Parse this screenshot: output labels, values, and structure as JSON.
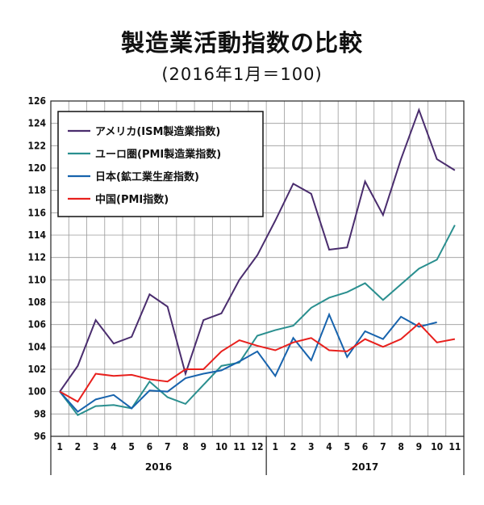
{
  "chart_data": {
    "type": "line",
    "title": "製造業活動指数の比較",
    "subtitle": "(2016年1月＝100)",
    "xlabel": "",
    "ylabel": "",
    "ylim": [
      96,
      126
    ],
    "yticks": [
      96,
      98,
      100,
      102,
      104,
      106,
      108,
      110,
      112,
      114,
      116,
      118,
      120,
      122,
      124,
      126
    ],
    "categories": [
      "1",
      "2",
      "3",
      "4",
      "5",
      "6",
      "7",
      "8",
      "9",
      "10",
      "11",
      "12",
      "1",
      "2",
      "3",
      "4",
      "5",
      "6",
      "7",
      "8",
      "9",
      "10",
      "11"
    ],
    "years": [
      {
        "label": "2016",
        "start": 0,
        "end": 11
      },
      {
        "label": "2017",
        "start": 12,
        "end": 22
      }
    ],
    "grid": true,
    "legend_position": "top-left",
    "series": [
      {
        "name": "アメリカ(ISM製造業指数)",
        "color": "#4a2d6e",
        "values": [
          100,
          102.3,
          106.4,
          104.3,
          104.9,
          108.7,
          107.6,
          101.6,
          106.4,
          107.0,
          110.0,
          112.2,
          115.3,
          118.6,
          117.7,
          112.7,
          112.9,
          118.8,
          115.8,
          120.8,
          125.2,
          120.8,
          119.8
        ]
      },
      {
        "name": "ユーロ圏(PMI製造業指数)",
        "color": "#2a8f8f",
        "values": [
          100,
          97.9,
          98.7,
          98.8,
          98.5,
          100.9,
          99.5,
          98.9,
          100.6,
          102.3,
          102.6,
          105.0,
          105.5,
          105.9,
          107.5,
          108.4,
          108.9,
          109.7,
          108.2,
          109.6,
          111.0,
          111.8,
          114.9
        ]
      },
      {
        "name": "日本(鉱工業生産指数)",
        "color": "#1763ad",
        "values": [
          100,
          98.2,
          99.3,
          99.7,
          98.5,
          100.1,
          100.0,
          101.2,
          101.6,
          101.9,
          102.7,
          103.6,
          101.4,
          104.8,
          102.8,
          106.9,
          103.1,
          105.4,
          104.7,
          106.7,
          105.8,
          106.2,
          null
        ]
      },
      {
        "name": "中国(PMI指数)",
        "color": "#e8201d",
        "values": [
          100,
          99.1,
          101.6,
          101.4,
          101.5,
          101.1,
          100.9,
          102.0,
          102.0,
          103.6,
          104.6,
          104.1,
          103.7,
          104.4,
          104.8,
          103.7,
          103.6,
          104.7,
          104.0,
          104.7,
          106.1,
          104.4,
          104.7
        ]
      }
    ]
  }
}
